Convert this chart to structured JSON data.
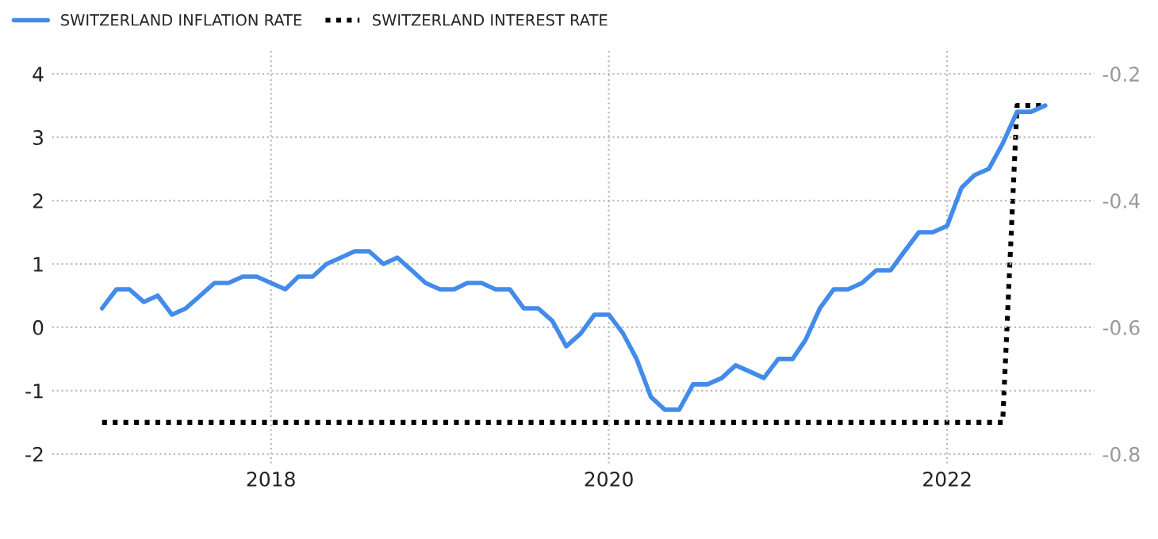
{
  "chart_data": {
    "type": "line",
    "x": [
      "2017-01",
      "2017-02",
      "2017-03",
      "2017-04",
      "2017-05",
      "2017-06",
      "2017-07",
      "2017-08",
      "2017-09",
      "2017-10",
      "2017-11",
      "2017-12",
      "2018-01",
      "2018-02",
      "2018-03",
      "2018-04",
      "2018-05",
      "2018-06",
      "2018-07",
      "2018-08",
      "2018-09",
      "2018-10",
      "2018-11",
      "2018-12",
      "2019-01",
      "2019-02",
      "2019-03",
      "2019-04",
      "2019-05",
      "2019-06",
      "2019-07",
      "2019-08",
      "2019-09",
      "2019-10",
      "2019-11",
      "2019-12",
      "2020-01",
      "2020-02",
      "2020-03",
      "2020-04",
      "2020-05",
      "2020-06",
      "2020-07",
      "2020-08",
      "2020-09",
      "2020-10",
      "2020-11",
      "2020-12",
      "2021-01",
      "2021-02",
      "2021-03",
      "2021-04",
      "2021-05",
      "2021-06",
      "2021-07",
      "2021-08",
      "2021-09",
      "2021-10",
      "2021-11",
      "2021-12",
      "2022-01",
      "2022-02",
      "2022-03",
      "2022-04",
      "2022-05",
      "2022-06",
      "2022-07",
      "2022-08"
    ],
    "series": [
      {
        "name": "SWITZERLAND INFLATION RATE",
        "color": "#428bea",
        "line_style": "solid",
        "values": [
          0.3,
          0.6,
          0.6,
          0.4,
          0.5,
          0.2,
          0.3,
          0.5,
          0.7,
          0.7,
          0.8,
          0.8,
          0.7,
          0.6,
          0.8,
          0.8,
          1.0,
          1.1,
          1.2,
          1.2,
          1.0,
          1.1,
          0.9,
          0.7,
          0.6,
          0.6,
          0.7,
          0.7,
          0.6,
          0.6,
          0.3,
          0.3,
          0.1,
          -0.3,
          -0.1,
          0.2,
          0.2,
          -0.1,
          -0.5,
          -1.1,
          -1.3,
          -1.3,
          -0.9,
          -0.9,
          -0.8,
          -0.6,
          -0.7,
          -0.8,
          -0.5,
          -0.5,
          -0.2,
          0.3,
          0.6,
          0.6,
          0.7,
          0.9,
          0.9,
          1.2,
          1.5,
          1.5,
          1.6,
          2.2,
          2.4,
          2.5,
          2.9,
          3.4,
          3.4,
          3.5
        ]
      },
      {
        "name": "SWITZERLAND INTEREST RATE",
        "color": "#000000",
        "line_style": "dotted",
        "axis": "y2",
        "x": [
          "2017-01",
          "2022-05",
          "2022-06",
          "2022-08"
        ],
        "values": [
          -0.75,
          -0.75,
          -0.25,
          -0.25
        ]
      }
    ],
    "xlim": [
      "2016-09-15",
      "2022-11-15"
    ],
    "xticks": [
      {
        "value": "2018-01-01",
        "label": "2018"
      },
      {
        "value": "2020-01-01",
        "label": "2020"
      },
      {
        "value": "2022-01-01",
        "label": "2022"
      }
    ],
    "ylim": [
      -2.15,
      4.4
    ],
    "yticks": [
      -2,
      -1,
      0,
      1,
      2,
      3,
      4
    ],
    "y2lim": [
      -0.815,
      -0.16
    ],
    "y2ticks": [
      -0.8,
      -0.6,
      -0.4,
      -0.2
    ],
    "grid": true,
    "legend": "top left"
  }
}
